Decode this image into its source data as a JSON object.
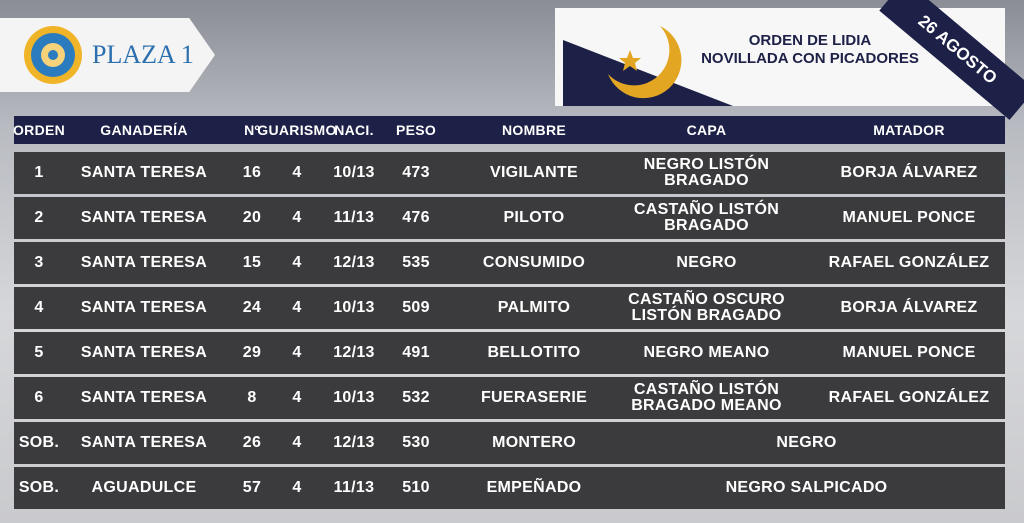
{
  "header": {
    "venue": "PLAZA 1",
    "title_lines": [
      "ORDEN DE LIDIA",
      "NOVILLADA CON PICADORES"
    ],
    "date": "26 AGOSTO"
  },
  "table": {
    "columns": [
      "ORDEN",
      "GANADERÍA",
      "Nº",
      "GUARISMO",
      "NACI.",
      "PESO",
      "NOMBRE",
      "CAPA",
      "MATADOR"
    ],
    "rows": [
      [
        "1",
        "SANTA TERESA",
        "16",
        "4",
        "10/13",
        "473",
        "VIGILANTE",
        [
          "NEGRO LISTÓN",
          "BRAGADO"
        ],
        "BORJA ÁLVAREZ"
      ],
      [
        "2",
        "SANTA TERESA",
        "20",
        "4",
        "11/13",
        "476",
        "PILOTO",
        [
          "CASTAÑO LISTÓN",
          "BRAGADO"
        ],
        "MANUEL PONCE"
      ],
      [
        "3",
        "SANTA TERESA",
        "15",
        "4",
        "12/13",
        "535",
        "CONSUMIDO",
        [
          "NEGRO"
        ],
        "RAFAEL GONZÁLEZ"
      ],
      [
        "4",
        "SANTA TERESA",
        "24",
        "4",
        "10/13",
        "509",
        "PALMITO",
        [
          "CASTAÑO OSCURO",
          "LISTÓN BRAGADO"
        ],
        "BORJA ÁLVAREZ"
      ],
      [
        "5",
        "SANTA TERESA",
        "29",
        "4",
        "12/13",
        "491",
        "BELLOTITO",
        [
          "NEGRO MEANO"
        ],
        "MANUEL PONCE"
      ],
      [
        "6",
        "SANTA TERESA",
        "8",
        "4",
        "10/13",
        "532",
        "FUERASERIE",
        [
          "CASTAÑO LISTÓN",
          "BRAGADO MEANO"
        ],
        "RAFAEL GONZÁLEZ"
      ],
      [
        "SOB.",
        "SANTA TERESA",
        "26",
        "4",
        "12/13",
        "530",
        "MONTERO",
        [
          "NEGRO"
        ]
      ],
      [
        "SOB.",
        "AGUADULCE",
        "57",
        "4",
        "11/13",
        "510",
        "EMPEÑADO",
        [
          "NEGRO SALPICADO"
        ]
      ]
    ]
  }
}
